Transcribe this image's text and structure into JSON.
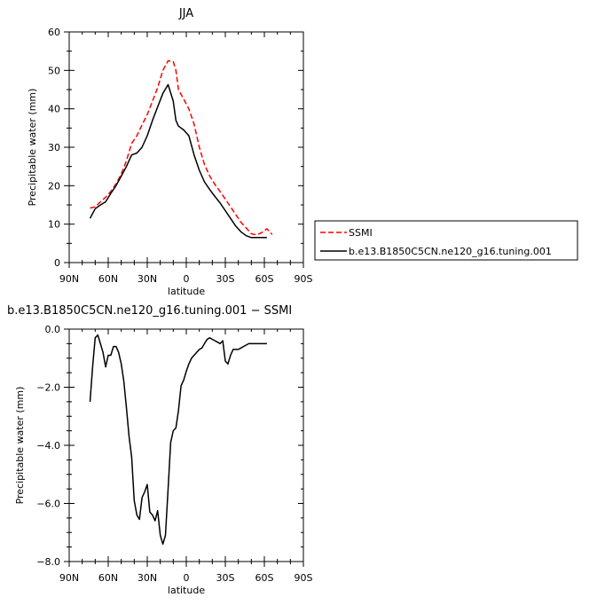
{
  "chart_data": [
    {
      "type": "line",
      "title": "JJA",
      "xlabel": "latitude",
      "ylabel": "Precipitable water (mm)",
      "xlim": [
        90,
        -90
      ],
      "ylim": [
        0,
        60
      ],
      "x_ticks": [
        90,
        60,
        30,
        0,
        -30,
        -60,
        -90
      ],
      "x_tick_labels": [
        "90N",
        "60N",
        "30N",
        "0",
        "30S",
        "60S",
        "90S"
      ],
      "y_ticks": [
        0,
        10,
        20,
        30,
        40,
        50,
        60
      ],
      "y_tick_labels": [
        "0",
        "10",
        "20",
        "30",
        "40",
        "50",
        "60"
      ],
      "legend": {
        "placement": "right",
        "entries": [
          "SSMI",
          "b.e13.B1850C5CN.ne120_g16.tuning.001"
        ]
      },
      "series": [
        {
          "name": "SSMI",
          "color": "#ff0000",
          "dash": "dashed",
          "x": [
            74,
            70,
            66,
            62,
            58,
            54,
            50,
            46,
            42,
            38,
            34,
            30,
            26,
            22,
            18,
            14,
            10,
            8,
            6,
            2,
            -2,
            -6,
            -10,
            -14,
            -18,
            -22,
            -26,
            -30,
            -34,
            -38,
            -42,
            -46,
            -50,
            -54,
            -58,
            -62,
            -66
          ],
          "y": [
            14.2,
            14.5,
            15.8,
            17,
            18.5,
            20.5,
            23,
            26.5,
            31,
            33,
            35.8,
            38.5,
            42,
            45.5,
            50,
            52.5,
            52.3,
            50,
            45,
            42.5,
            40,
            36,
            30,
            25.5,
            22.5,
            20.3,
            18.5,
            16.5,
            14.5,
            12.5,
            10.5,
            9,
            7.5,
            7.2,
            7.8,
            8.8,
            7.3
          ]
        },
        {
          "name": "b.e13.B1850C5CN.ne120_g16.tuning.001",
          "color": "#000000",
          "dash": "solid",
          "x": [
            74,
            70,
            66,
            62,
            58,
            54,
            50,
            46,
            42,
            38,
            34,
            30,
            26,
            22,
            18,
            14,
            10,
            8,
            6,
            2,
            -2,
            -6,
            -10,
            -14,
            -18,
            -22,
            -26,
            -30,
            -34,
            -38,
            -42,
            -46,
            -50,
            -54,
            -58,
            -62
          ],
          "y": [
            11.5,
            14,
            15,
            15.8,
            18,
            20,
            22.5,
            25,
            28,
            28.5,
            30,
            33,
            37,
            40.5,
            44,
            46.3,
            42,
            37,
            35.5,
            34.5,
            33,
            28,
            24,
            21,
            19,
            17.2,
            15.5,
            13.5,
            11.5,
            9.5,
            8,
            7,
            6.5,
            6.5,
            6.5,
            6.5
          ]
        }
      ]
    },
    {
      "type": "line",
      "title": "b.e13.B1850C5CN.ne120_g16.tuning.001 − SSMI",
      "xlabel": "latitude",
      "ylabel": "Precipitable water (mm)",
      "xlim": [
        90,
        -90
      ],
      "ylim": [
        -8,
        0
      ],
      "x_ticks": [
        90,
        60,
        30,
        0,
        -30,
        -60,
        -90
      ],
      "x_tick_labels": [
        "90N",
        "60N",
        "30N",
        "0",
        "30S",
        "60S",
        "90S"
      ],
      "y_ticks": [
        0,
        -2,
        -4,
        -6,
        -8
      ],
      "y_tick_labels": [
        "0.0",
        "−2.0",
        "−4.0",
        "−6.0",
        "−8.0"
      ],
      "series": [
        {
          "color": "#000000",
          "dash": "solid",
          "x": [
            74,
            72,
            70,
            68,
            66,
            64,
            62,
            60,
            58,
            56,
            54,
            52,
            50,
            48,
            46,
            44,
            42,
            40,
            38,
            36,
            34,
            32,
            30,
            28,
            26,
            24,
            22,
            20,
            18,
            16,
            14,
            12,
            10,
            8,
            6,
            4,
            2,
            0,
            -2,
            -4,
            -6,
            -8,
            -10,
            -12,
            -14,
            -16,
            -18,
            -20,
            -22,
            -24,
            -26,
            -28,
            -30,
            -32,
            -34,
            -36,
            -38,
            -40,
            -42,
            -44,
            -46,
            -48,
            -50,
            -52,
            -54,
            -56,
            -58,
            -60,
            -62
          ],
          "y": [
            -2.5,
            -1.3,
            -0.3,
            -0.2,
            -0.5,
            -0.8,
            -1.3,
            -0.9,
            -0.9,
            -0.6,
            -0.6,
            -0.8,
            -1.2,
            -1.8,
            -2.7,
            -3.7,
            -4.4,
            -5.9,
            -6.4,
            -6.55,
            -5.8,
            -5.6,
            -5.35,
            -6.3,
            -6.4,
            -6.6,
            -6.25,
            -7.1,
            -7.4,
            -7.1,
            -5.5,
            -3.9,
            -3.5,
            -3.4,
            -2.8,
            -1.95,
            -1.75,
            -1.45,
            -1.2,
            -1.0,
            -0.9,
            -0.8,
            -0.7,
            -0.65,
            -0.5,
            -0.35,
            -0.3,
            -0.35,
            -0.4,
            -0.45,
            -0.5,
            -0.4,
            -1.1,
            -1.2,
            -0.9,
            -0.7,
            -0.7,
            -0.7,
            -0.65,
            -0.6,
            -0.55,
            -0.5,
            -0.5,
            -0.5,
            -0.5,
            -0.5,
            -0.5,
            -0.5,
            -0.5
          ]
        }
      ]
    }
  ]
}
